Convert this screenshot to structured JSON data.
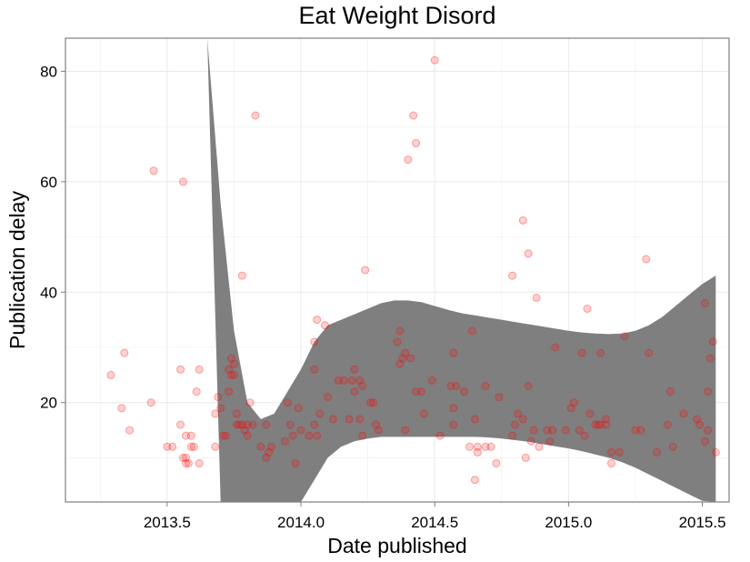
{
  "chart_data": {
    "type": "scatter",
    "title": "Eat Weight Disord",
    "xlabel": "Date published",
    "ylabel": "Publication delay",
    "xlim": [
      2013.12,
      2015.6
    ],
    "ylim": [
      2,
      86
    ],
    "x_ticks": [
      2013.5,
      2014.0,
      2014.5,
      2015.0,
      2015.5
    ],
    "x_tick_labels": [
      "2013.5",
      "2014.0",
      "2014.5",
      "2015.0",
      "2015.5"
    ],
    "y_ticks": [
      20,
      40,
      60,
      80
    ],
    "y_tick_labels": [
      "20",
      "40",
      "60",
      "80"
    ],
    "grid": true,
    "colors": {
      "points": "#ff0000",
      "band": "#7f7f7f",
      "grid": "#ebebeb",
      "panel_border": "#7f7f7f"
    },
    "points": [
      [
        2013.29,
        25
      ],
      [
        2013.33,
        19
      ],
      [
        2013.34,
        29
      ],
      [
        2013.36,
        15
      ],
      [
        2013.44,
        20
      ],
      [
        2013.45,
        62
      ],
      [
        2013.5,
        12
      ],
      [
        2013.52,
        12
      ],
      [
        2013.55,
        26
      ],
      [
        2013.55,
        16
      ],
      [
        2013.56,
        60
      ],
      [
        2013.56,
        10
      ],
      [
        2013.57,
        14
      ],
      [
        2013.57,
        10
      ],
      [
        2013.57,
        9
      ],
      [
        2013.58,
        9
      ],
      [
        2013.59,
        12
      ],
      [
        2013.59,
        14
      ],
      [
        2013.6,
        12
      ],
      [
        2013.61,
        22
      ],
      [
        2013.62,
        26
      ],
      [
        2013.62,
        9
      ],
      [
        2013.68,
        12
      ],
      [
        2013.68,
        18
      ],
      [
        2013.69,
        21
      ],
      [
        2013.7,
        19
      ],
      [
        2013.71,
        14
      ],
      [
        2013.72,
        14
      ],
      [
        2013.73,
        22
      ],
      [
        2013.73,
        26
      ],
      [
        2013.74,
        28
      ],
      [
        2013.74,
        25
      ],
      [
        2013.75,
        27
      ],
      [
        2013.75,
        25
      ],
      [
        2013.76,
        18
      ],
      [
        2013.76,
        16
      ],
      [
        2013.77,
        16
      ],
      [
        2013.78,
        43
      ],
      [
        2013.78,
        16
      ],
      [
        2013.79,
        15
      ],
      [
        2013.8,
        14
      ],
      [
        2013.8,
        16
      ],
      [
        2013.81,
        20
      ],
      [
        2013.82,
        16
      ],
      [
        2013.83,
        72
      ],
      [
        2013.85,
        12
      ],
      [
        2013.87,
        16
      ],
      [
        2013.87,
        10
      ],
      [
        2013.88,
        11
      ],
      [
        2013.89,
        12
      ],
      [
        2013.94,
        13
      ],
      [
        2013.95,
        20
      ],
      [
        2013.96,
        16
      ],
      [
        2013.97,
        14
      ],
      [
        2013.98,
        9
      ],
      [
        2013.99,
        19
      ],
      [
        2014.0,
        15
      ],
      [
        2014.03,
        14
      ],
      [
        2014.05,
        31
      ],
      [
        2014.05,
        26
      ],
      [
        2014.05,
        16
      ],
      [
        2014.06,
        35
      ],
      [
        2014.06,
        14
      ],
      [
        2014.07,
        18
      ],
      [
        2014.09,
        34
      ],
      [
        2014.1,
        21
      ],
      [
        2014.12,
        17
      ],
      [
        2014.14,
        24
      ],
      [
        2014.16,
        24
      ],
      [
        2014.18,
        17
      ],
      [
        2014.19,
        24
      ],
      [
        2014.2,
        26
      ],
      [
        2014.2,
        22
      ],
      [
        2014.22,
        24
      ],
      [
        2014.22,
        17
      ],
      [
        2014.23,
        23
      ],
      [
        2014.23,
        14
      ],
      [
        2014.24,
        44
      ],
      [
        2014.26,
        20
      ],
      [
        2014.27,
        20
      ],
      [
        2014.28,
        16
      ],
      [
        2014.29,
        15
      ],
      [
        2014.36,
        31
      ],
      [
        2014.37,
        33
      ],
      [
        2014.37,
        27
      ],
      [
        2014.38,
        28
      ],
      [
        2014.39,
        29
      ],
      [
        2014.39,
        15
      ],
      [
        2014.4,
        64
      ],
      [
        2014.41,
        28
      ],
      [
        2014.42,
        72
      ],
      [
        2014.43,
        67
      ],
      [
        2014.43,
        22
      ],
      [
        2014.45,
        22
      ],
      [
        2014.46,
        18
      ],
      [
        2014.49,
        24
      ],
      [
        2014.5,
        82
      ],
      [
        2014.52,
        14
      ],
      [
        2014.56,
        23
      ],
      [
        2014.57,
        29
      ],
      [
        2014.57,
        19
      ],
      [
        2014.57,
        16
      ],
      [
        2014.58,
        23
      ],
      [
        2014.61,
        22
      ],
      [
        2014.63,
        12
      ],
      [
        2014.64,
        33
      ],
      [
        2014.65,
        17
      ],
      [
        2014.65,
        6
      ],
      [
        2014.66,
        11
      ],
      [
        2014.66,
        12
      ],
      [
        2014.69,
        23
      ],
      [
        2014.69,
        12
      ],
      [
        2014.71,
        12
      ],
      [
        2014.73,
        9
      ],
      [
        2014.74,
        21
      ],
      [
        2014.79,
        43
      ],
      [
        2014.79,
        14
      ],
      [
        2014.8,
        16
      ],
      [
        2014.81,
        18
      ],
      [
        2014.83,
        53
      ],
      [
        2014.83,
        17
      ],
      [
        2014.84,
        10
      ],
      [
        2014.85,
        47
      ],
      [
        2014.85,
        23
      ],
      [
        2014.86,
        13
      ],
      [
        2014.87,
        15
      ],
      [
        2014.88,
        39
      ],
      [
        2014.89,
        12
      ],
      [
        2014.92,
        15
      ],
      [
        2014.93,
        13
      ],
      [
        2014.94,
        15
      ],
      [
        2014.95,
        30
      ],
      [
        2014.99,
        15
      ],
      [
        2015.01,
        19
      ],
      [
        2015.02,
        20
      ],
      [
        2015.04,
        15
      ],
      [
        2015.05,
        29
      ],
      [
        2015.06,
        14
      ],
      [
        2015.07,
        37
      ],
      [
        2015.08,
        18
      ],
      [
        2015.1,
        16
      ],
      [
        2015.11,
        16
      ],
      [
        2015.12,
        29
      ],
      [
        2015.12,
        16
      ],
      [
        2015.14,
        17
      ],
      [
        2015.14,
        16
      ],
      [
        2015.16,
        11
      ],
      [
        2015.16,
        9
      ],
      [
        2015.19,
        11
      ],
      [
        2015.21,
        32
      ],
      [
        2015.25,
        15
      ],
      [
        2015.27,
        15
      ],
      [
        2015.29,
        46
      ],
      [
        2015.3,
        29
      ],
      [
        2015.33,
        11
      ],
      [
        2015.37,
        16
      ],
      [
        2015.38,
        22
      ],
      [
        2015.39,
        12
      ],
      [
        2015.43,
        18
      ],
      [
        2015.48,
        17
      ],
      [
        2015.49,
        16
      ],
      [
        2015.51,
        13
      ],
      [
        2015.51,
        38
      ],
      [
        2015.52,
        15
      ],
      [
        2015.52,
        22
      ],
      [
        2015.53,
        28
      ],
      [
        2015.54,
        31
      ],
      [
        2015.55,
        11
      ]
    ],
    "band": {
      "x": [
        2013.55,
        2013.6,
        2013.65,
        2013.7,
        2013.75,
        2013.8,
        2013.85,
        2013.9,
        2013.95,
        2014.0,
        2014.05,
        2014.1,
        2014.15,
        2014.2,
        2014.25,
        2014.3,
        2014.35,
        2014.4,
        2014.45,
        2014.5,
        2014.55,
        2014.6,
        2014.65,
        2014.7,
        2014.75,
        2014.8,
        2014.85,
        2014.9,
        2014.95,
        2015.0,
        2015.05,
        2015.1,
        2015.15,
        2015.2,
        2015.25,
        2015.3,
        2015.35,
        2015.4,
        2015.45,
        2015.5,
        2015.55
      ],
      "upper": [
        86,
        86,
        86,
        56,
        33,
        20,
        17,
        18,
        22,
        26,
        31,
        34,
        35,
        36,
        37,
        38,
        38.5,
        38.5,
        38.2,
        37.5,
        36.8,
        36.2,
        35.8,
        35.4,
        35,
        34.6,
        34.2,
        33.8,
        33.4,
        33,
        32.7,
        32.5,
        32.4,
        32.5,
        33,
        34,
        35.5,
        37.5,
        39.5,
        41.5,
        43
      ],
      "lower": [
        86,
        86,
        86,
        2,
        2,
        2,
        2,
        2,
        2,
        2,
        6,
        10,
        12,
        13,
        13.5,
        13.8,
        13.8,
        13.8,
        13.8,
        13.8,
        13.8,
        13.8,
        13.8,
        13.7,
        13.5,
        13.2,
        12.9,
        12.5,
        12.1,
        11.7,
        11.2,
        10.6,
        10,
        9.2,
        8.2,
        7,
        5.8,
        4.6,
        3.4,
        2.2,
        2
      ]
    }
  }
}
